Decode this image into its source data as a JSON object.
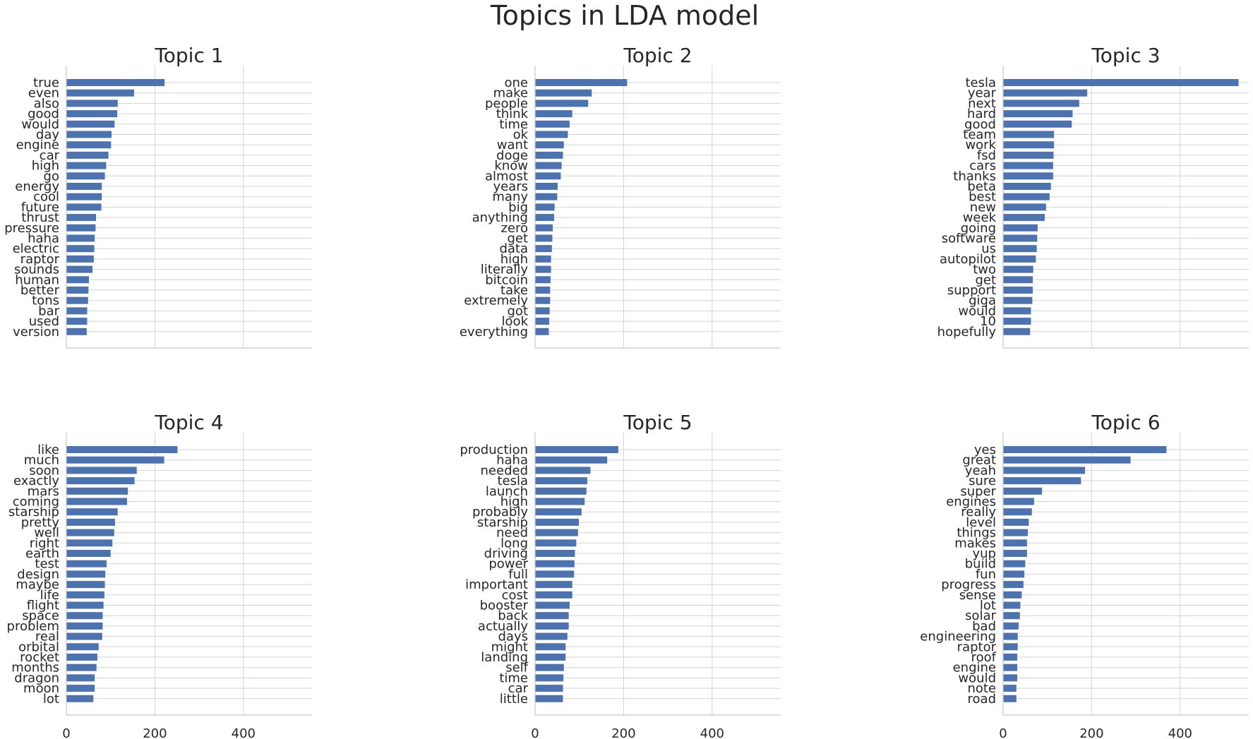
{
  "title": "Topics in LDA model",
  "colors": {
    "bar": "#4c72b0",
    "grid": "#d3d3d3",
    "text": "#262626"
  },
  "chart_data": [
    {
      "type": "bar",
      "orientation": "horizontal",
      "title": "Topic 1",
      "xlim": [
        0,
        555
      ],
      "xticks": [
        0,
        200,
        400
      ],
      "grid": true,
      "categories": [
        "true",
        "even",
        "also",
        "good",
        "would",
        "day",
        "engine",
        "car",
        "high",
        "go",
        "energy",
        "cool",
        "future",
        "thrust",
        "pressure",
        "haha",
        "electric",
        "raptor",
        "sounds",
        "human",
        "better",
        "tons",
        "bar",
        "used",
        "version"
      ],
      "values": [
        222,
        153,
        116,
        115,
        109,
        102,
        101,
        95,
        90,
        87,
        80,
        80,
        79,
        67,
        66,
        64,
        63,
        62,
        59,
        51,
        50,
        49,
        47,
        47,
        46
      ]
    },
    {
      "type": "bar",
      "orientation": "horizontal",
      "title": "Topic 2",
      "xlim": [
        0,
        555
      ],
      "xticks": [
        0,
        200,
        400
      ],
      "grid": true,
      "categories": [
        "one",
        "make",
        "people",
        "think",
        "time",
        "ok",
        "want",
        "doge",
        "know",
        "almost",
        "years",
        "many",
        "big",
        "anything",
        "zero",
        "get",
        "data",
        "high",
        "literally",
        "bitcoin",
        "take",
        "extremely",
        "got",
        "look",
        "everything"
      ],
      "values": [
        208,
        128,
        120,
        84,
        78,
        74,
        65,
        63,
        60,
        58,
        51,
        50,
        44,
        43,
        40,
        39,
        38,
        36,
        36,
        35,
        34,
        34,
        33,
        32,
        31
      ]
    },
    {
      "type": "bar",
      "orientation": "horizontal",
      "title": "Topic 3",
      "xlim": [
        0,
        555
      ],
      "xticks": [
        0,
        200,
        400
      ],
      "grid": true,
      "categories": [
        "tesla",
        "year",
        "next",
        "hard",
        "good",
        "team",
        "work",
        "fsd",
        "cars",
        "thanks",
        "beta",
        "best",
        "new",
        "week",
        "going",
        "software",
        "us",
        "autopilot",
        "two",
        "get",
        "support",
        "giga",
        "would",
        "10",
        "hopefully"
      ],
      "values": [
        532,
        190,
        172,
        157,
        155,
        115,
        115,
        114,
        113,
        113,
        108,
        105,
        97,
        94,
        78,
        77,
        76,
        74,
        68,
        67,
        67,
        66,
        63,
        63,
        61
      ]
    },
    {
      "type": "bar",
      "orientation": "horizontal",
      "title": "Topic 4",
      "xlim": [
        0,
        555
      ],
      "xticks": [
        0,
        200,
        400
      ],
      "grid": true,
      "categories": [
        "like",
        "much",
        "soon",
        "exactly",
        "mars",
        "coming",
        "starship",
        "pretty",
        "well",
        "right",
        "earth",
        "test",
        "design",
        "maybe",
        "life",
        "flight",
        "space",
        "problem",
        "real",
        "orbital",
        "rocket",
        "months",
        "dragon",
        "moon",
        "lot"
      ],
      "values": [
        251,
        221,
        159,
        154,
        139,
        137,
        116,
        110,
        108,
        104,
        100,
        91,
        88,
        87,
        86,
        84,
        82,
        82,
        81,
        73,
        70,
        68,
        64,
        64,
        61
      ]
    },
    {
      "type": "bar",
      "orientation": "horizontal",
      "title": "Topic 5",
      "xlim": [
        0,
        555
      ],
      "xticks": [
        0,
        200,
        400
      ],
      "grid": true,
      "categories": [
        "production",
        "haha",
        "needed",
        "tesla",
        "launch",
        "high",
        "probably",
        "starship",
        "need",
        "long",
        "driving",
        "power",
        "full",
        "important",
        "cost",
        "booster",
        "back",
        "actually",
        "days",
        "might",
        "landing",
        "self",
        "time",
        "car",
        "little"
      ],
      "values": [
        188,
        163,
        125,
        118,
        116,
        112,
        105,
        99,
        97,
        93,
        90,
        89,
        88,
        84,
        84,
        78,
        76,
        76,
        73,
        69,
        69,
        65,
        64,
        63,
        63
      ]
    },
    {
      "type": "bar",
      "orientation": "horizontal",
      "title": "Topic 6",
      "xlim": [
        0,
        555
      ],
      "xticks": [
        0,
        200,
        400
      ],
      "grid": true,
      "categories": [
        "yes",
        "great",
        "yeah",
        "sure",
        "super",
        "engines",
        "really",
        "level",
        "things",
        "makes",
        "yup",
        "build",
        "fun",
        "progress",
        "sense",
        "lot",
        "solar",
        "bad",
        "engineering",
        "raptor",
        "roof",
        "engine",
        "would",
        "note",
        "road"
      ],
      "values": [
        369,
        288,
        185,
        176,
        88,
        70,
        65,
        58,
        56,
        54,
        54,
        50,
        48,
        46,
        42,
        39,
        38,
        35,
        33,
        33,
        32,
        32,
        32,
        30,
        30
      ]
    }
  ]
}
